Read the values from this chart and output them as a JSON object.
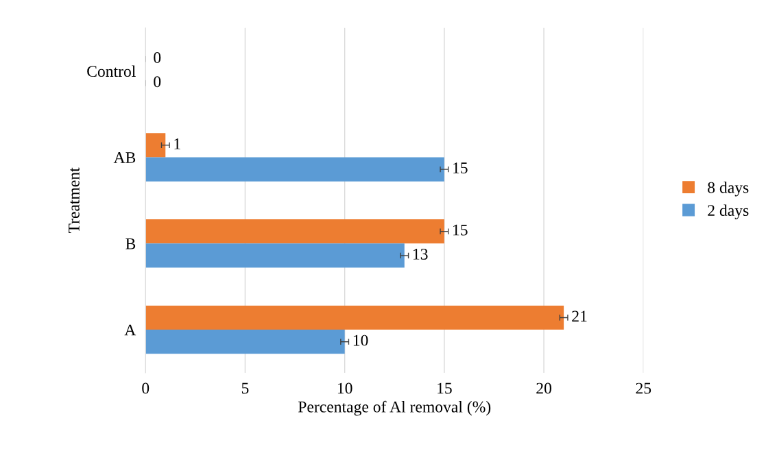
{
  "chart_data": {
    "type": "bar",
    "orientation": "horizontal",
    "xlabel": "Percentage of Al removal (%)",
    "ylabel": "Treatment",
    "categories": [
      "Control",
      "AB",
      "B",
      "A"
    ],
    "series": [
      {
        "name": "8 days",
        "color": "#ed7d31",
        "values": [
          0,
          1,
          15,
          21
        ],
        "errors": [
          null,
          0.2,
          0.2,
          0.2
        ]
      },
      {
        "name": "2 days",
        "color": "#5b9bd5",
        "values": [
          0,
          15,
          13,
          10
        ],
        "errors": [
          null,
          0.2,
          0.2,
          0.2
        ]
      }
    ],
    "xlim": [
      0,
      25
    ],
    "xticks": [
      0,
      5,
      10,
      15,
      20,
      25
    ],
    "grid": "x",
    "legend": "right",
    "data_labels": true
  }
}
